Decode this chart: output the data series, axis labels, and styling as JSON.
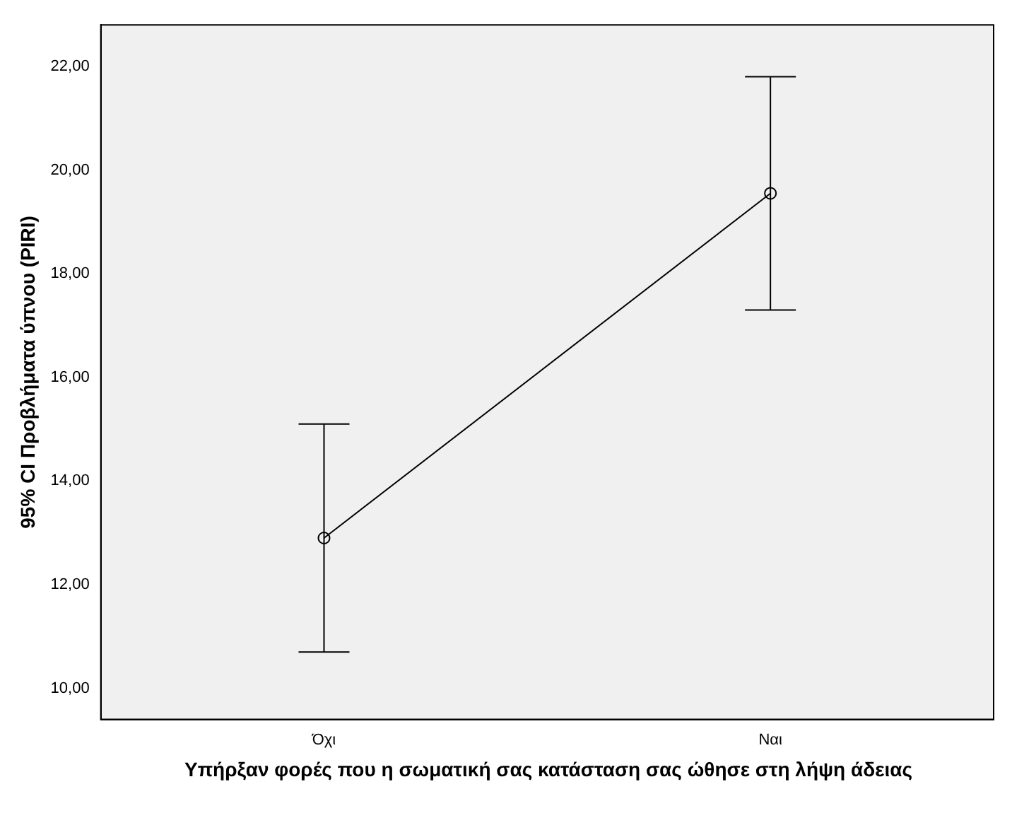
{
  "chart_data": {
    "type": "line",
    "xlabel": "Υπήρξαν φορές που η σωματική σας κατάσταση σας ώθησε στη λήψη άδειας",
    "ylabel": "95% CI Προβλήματα ύπνου (PIRI)",
    "categories": [
      "Όχι",
      "Ναι"
    ],
    "series": [
      {
        "color": "#000000",
        "values": [
          12.9,
          19.55
        ],
        "errors": [
          [
            10.7,
            15.1
          ],
          [
            17.3,
            21.8
          ]
        ]
      }
    ],
    "marker": "circle",
    "line_style": "solid",
    "grid": false,
    "legend": false,
    "ylim": [
      9.4,
      22.8
    ],
    "yticks": [
      {
        "value": 10,
        "label": "10,00"
      },
      {
        "value": 12,
        "label": "12,00"
      },
      {
        "value": 14,
        "label": "14,00"
      },
      {
        "value": 16,
        "label": "16,00"
      },
      {
        "value": 18,
        "label": "18,00"
      },
      {
        "value": 20,
        "label": "20,00"
      },
      {
        "value": 22,
        "label": "22,00"
      }
    ]
  }
}
